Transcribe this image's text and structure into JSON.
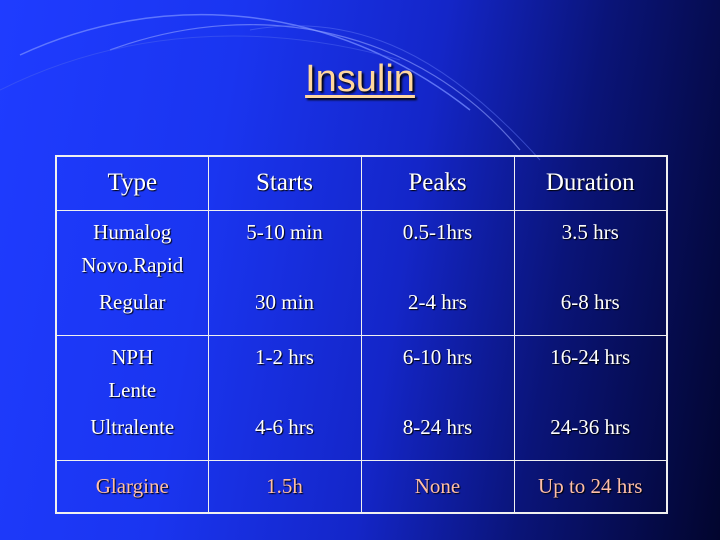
{
  "slide": {
    "title": "Insulin"
  },
  "table": {
    "headers": [
      "Type",
      "Starts",
      "Peaks",
      "Duration"
    ],
    "rows": [
      {
        "type": [
          "Humalog",
          "Novo.Rapid",
          "Regular"
        ],
        "starts": [
          "5-10 min",
          "",
          "30 min"
        ],
        "peaks": [
          "0.5-1hrs",
          "",
          "2-4 hrs"
        ],
        "duration": [
          "3.5 hrs",
          "",
          "6-8 hrs"
        ]
      },
      {
        "type": [
          "NPH",
          "Lente",
          "Ultralente"
        ],
        "starts": [
          "1-2 hrs",
          "",
          "4-6 hrs"
        ],
        "peaks": [
          "6-10 hrs",
          "",
          "8-24 hrs"
        ],
        "duration": [
          "16-24 hrs",
          "",
          "24-36 hrs"
        ]
      },
      {
        "type": [
          "Glargine"
        ],
        "starts": [
          "1.5h"
        ],
        "peaks": [
          "None"
        ],
        "duration": [
          "Up to 24 hrs"
        ]
      }
    ]
  },
  "colors": {
    "background": "#1f3cff",
    "title": "#ffd79e",
    "text": "#ffffff",
    "last_row_text": "#ffbfa8",
    "grid_lines": "#f0f0f0"
  }
}
